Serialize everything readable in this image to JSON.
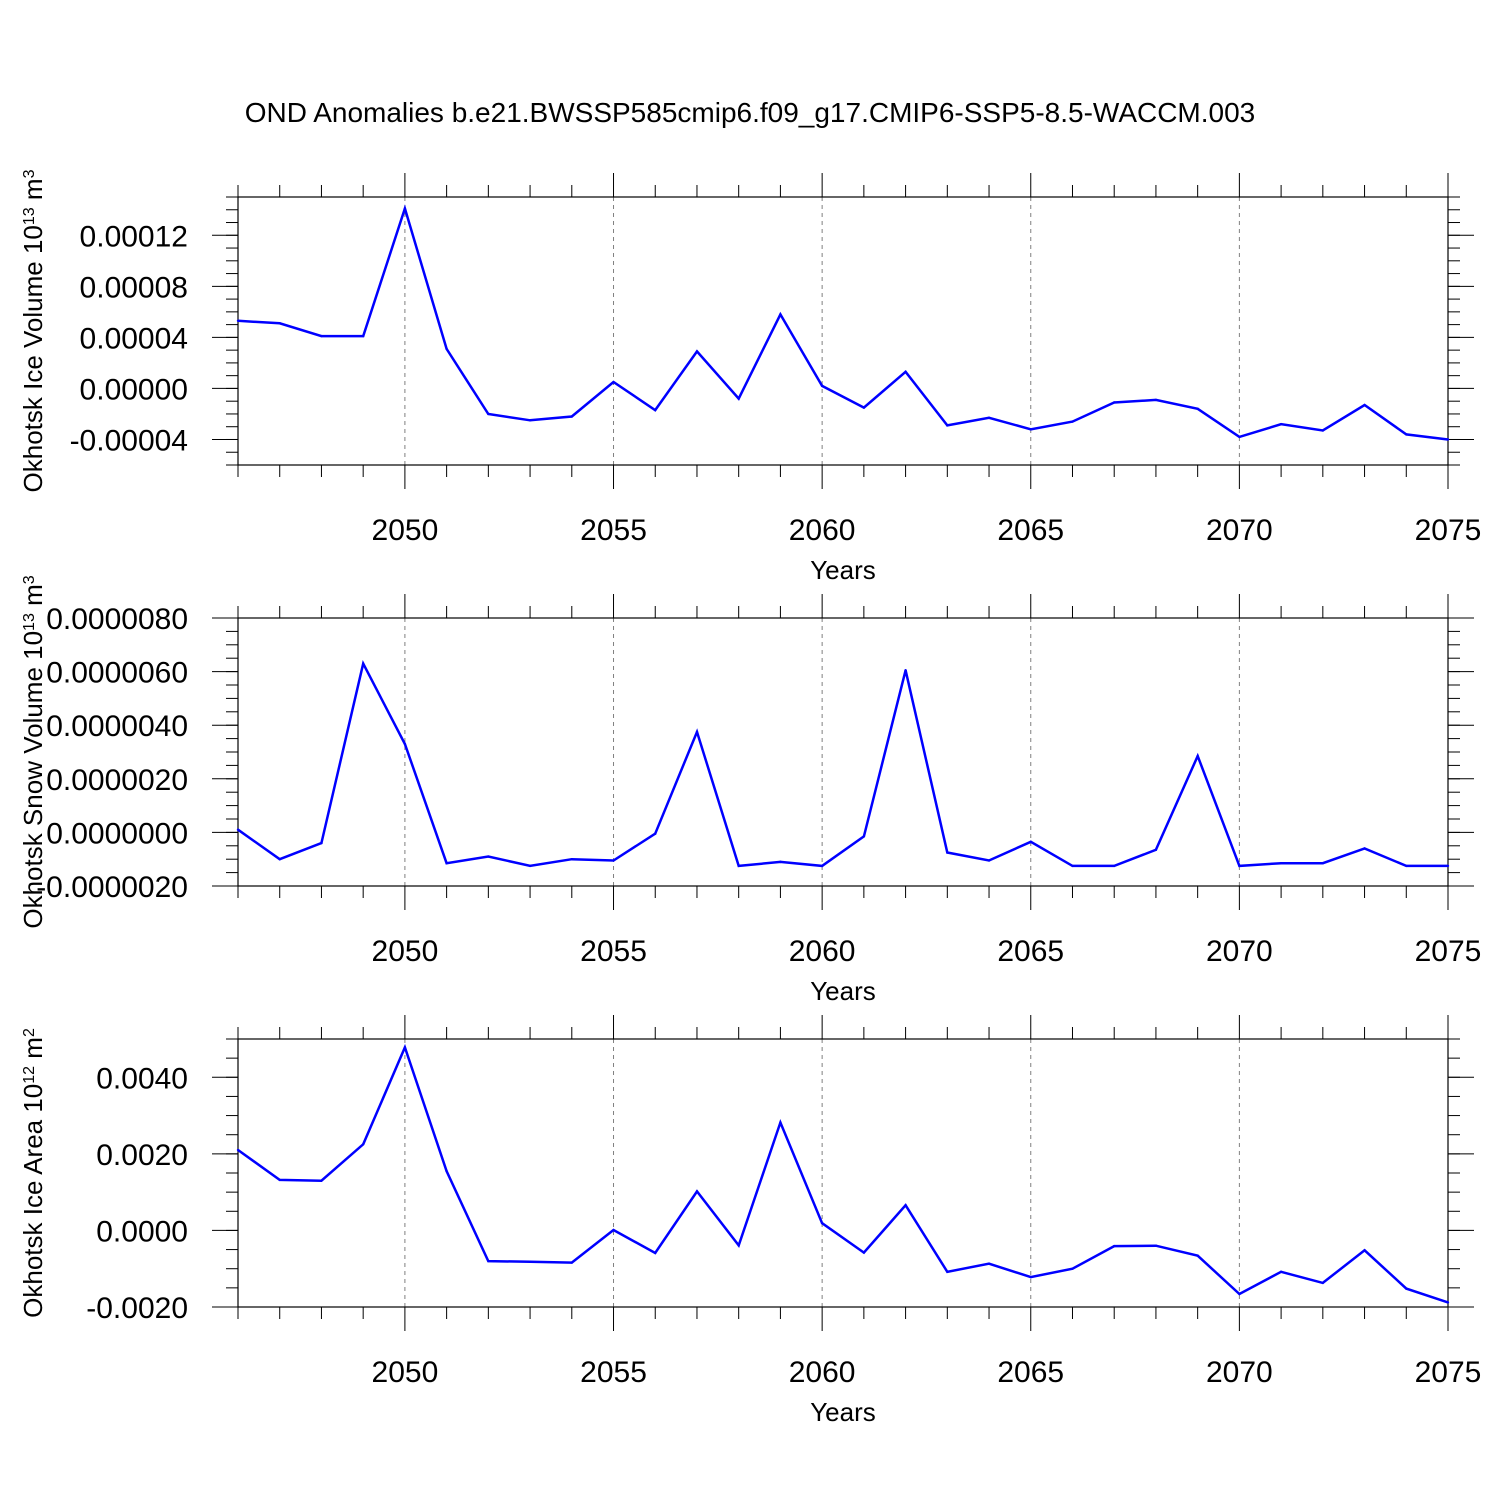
{
  "title": "OND Anomalies b.e21.BWSSP585cmip6.f09_g17.CMIP6-SSP5-8.5-WACCM.003",
  "colors": {
    "line": "#0000ff",
    "axis": "#000000",
    "grid": "#808080"
  },
  "chart_data": [
    {
      "type": "line",
      "ylabel_main": "Okhotsk Ice Volume 10",
      "ylabel_exp": "13",
      "ylabel_unit": " m",
      "ylabel_unit_exp": "3",
      "xlabel": "Years",
      "xlim": [
        2046,
        2075
      ],
      "ylim": [
        -6e-05,
        0.00015
      ],
      "x_ticks": [
        2050,
        2055,
        2060,
        2065,
        2070,
        2075
      ],
      "y_ticks": [
        -4e-05,
        0.0,
        4e-05,
        8e-05,
        0.00012
      ],
      "y_tick_labels": [
        "-0.00004",
        "0.00000",
        "0.00004",
        "0.00008",
        "0.00012"
      ],
      "grid": "dashed vertical at major x ticks",
      "x": [
        2046,
        2047,
        2048,
        2049,
        2050,
        2051,
        2052,
        2053,
        2054,
        2055,
        2056,
        2057,
        2058,
        2059,
        2060,
        2061,
        2062,
        2063,
        2064,
        2065,
        2066,
        2067,
        2068,
        2069,
        2070,
        2071,
        2072,
        2073,
        2074,
        2075
      ],
      "values": [
        5.3e-05,
        5.1e-05,
        4.1e-05,
        4.1e-05,
        0.000141,
        3.1e-05,
        -2e-05,
        -2.5e-05,
        -2.2e-05,
        5e-06,
        -1.7e-05,
        2.9e-05,
        -8e-06,
        5.8e-05,
        2e-06,
        -1.5e-05,
        1.3e-05,
        -2.9e-05,
        -2.3e-05,
        -3.2e-05,
        -2.6e-05,
        -1.1e-05,
        -9e-06,
        -1.6e-05,
        -3.8e-05,
        -2.8e-05,
        -3.3e-05,
        -1.3e-05,
        -3.6e-05,
        -4e-05
      ]
    },
    {
      "type": "line",
      "ylabel_main": "Okhotsk Snow Volume 10",
      "ylabel_exp": "13",
      "ylabel_unit": " m",
      "ylabel_unit_exp": "3",
      "xlabel": "Years",
      "xlim": [
        2046,
        2075
      ],
      "ylim": [
        -2e-06,
        8e-06
      ],
      "x_ticks": [
        2050,
        2055,
        2060,
        2065,
        2070,
        2075
      ],
      "y_ticks": [
        -2e-06,
        0.0,
        2e-06,
        4e-06,
        6e-06,
        8e-06
      ],
      "y_tick_labels": [
        "-0.0000020",
        "0.0000000",
        "0.0000020",
        "0.0000040",
        "0.0000060",
        "0.0000080"
      ],
      "grid": "dashed vertical at major x ticks",
      "x": [
        2046,
        2047,
        2048,
        2049,
        2050,
        2051,
        2052,
        2053,
        2054,
        2055,
        2056,
        2057,
        2058,
        2059,
        2060,
        2061,
        2062,
        2063,
        2064,
        2065,
        2066,
        2067,
        2068,
        2069,
        2070,
        2071,
        2072,
        2073,
        2074,
        2075
      ],
      "values": [
        1e-07,
        -1e-06,
        -4e-07,
        6.3e-06,
        3.3e-06,
        -1.15e-06,
        -9e-07,
        -1.25e-06,
        -1e-06,
        -1.05e-06,
        -5e-08,
        3.75e-06,
        -1.25e-06,
        -1.1e-06,
        -1.25e-06,
        -1.5e-07,
        6.05e-06,
        -7.5e-07,
        -1.05e-06,
        -3.5e-07,
        -1.25e-06,
        -1.25e-06,
        -6.5e-07,
        2.85e-06,
        -1.25e-06,
        -1.15e-06,
        -1.15e-06,
        -6e-07,
        -1.25e-06,
        -1.25e-06
      ]
    },
    {
      "type": "line",
      "ylabel_main": "Okhotsk Ice Area 10",
      "ylabel_exp": "12",
      "ylabel_unit": " m",
      "ylabel_unit_exp": "2",
      "xlabel": "Years",
      "xlim": [
        2046,
        2075
      ],
      "ylim": [
        -0.002,
        0.005
      ],
      "x_ticks": [
        2050,
        2055,
        2060,
        2065,
        2070,
        2075
      ],
      "y_ticks": [
        -0.002,
        0.0,
        0.002,
        0.004
      ],
      "y_tick_labels": [
        "-0.0020",
        "0.0000",
        "0.0020",
        "0.0040"
      ],
      "grid": "dashed vertical at major x ticks",
      "x": [
        2046,
        2047,
        2048,
        2049,
        2050,
        2051,
        2052,
        2053,
        2054,
        2055,
        2056,
        2057,
        2058,
        2059,
        2060,
        2061,
        2062,
        2063,
        2064,
        2065,
        2066,
        2067,
        2068,
        2069,
        2070,
        2071,
        2072,
        2073,
        2074,
        2075
      ],
      "values": [
        0.0021,
        0.00132,
        0.0013,
        0.00225,
        0.00478,
        0.00155,
        -0.0008,
        -0.00082,
        -0.00084,
        1e-05,
        -0.00059,
        0.00102,
        -0.00039,
        0.00282,
        0.00019,
        -0.00058,
        0.00066,
        -0.00108,
        -0.00087,
        -0.00122,
        -0.001,
        -0.00041,
        -0.0004,
        -0.00066,
        -0.00166,
        -0.00108,
        -0.00137,
        -0.00052,
        -0.00152,
        -0.00188
      ]
    }
  ]
}
